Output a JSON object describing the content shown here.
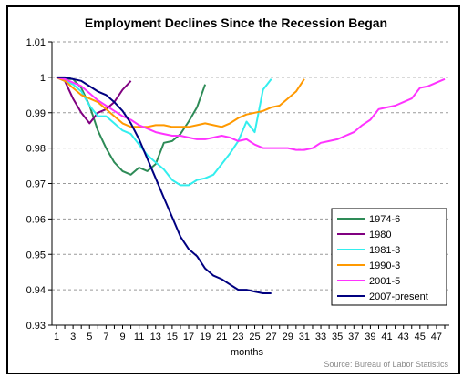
{
  "chart_data": {
    "type": "line",
    "title": "Employment Declines Since the Recession Began",
    "xlabel": "months",
    "ylabel": "",
    "source": "Source: Bureau of Labor Statistics",
    "xlim": [
      1,
      48
    ],
    "ylim": [
      0.93,
      1.01
    ],
    "yticks": [
      "0.93",
      "0.94",
      "0.95",
      "0.96",
      "0.97",
      "0.98",
      "0.99",
      "1",
      "1.01"
    ],
    "ytick_values": [
      0.93,
      0.94,
      0.95,
      0.96,
      0.97,
      0.98,
      0.99,
      1.0,
      1.01
    ],
    "xticks": [
      "1",
      "3",
      "5",
      "7",
      "9",
      "11",
      "13",
      "15",
      "17",
      "19",
      "21",
      "23",
      "25",
      "27",
      "29",
      "31",
      "33",
      "35",
      "37",
      "39",
      "41",
      "43",
      "45",
      "47"
    ],
    "grid": "horizontal dashed",
    "legend_position": "right",
    "series": [
      {
        "name": "1974-6",
        "color": "#2E8B57",
        "values": [
          1.0,
          0.9995,
          0.9995,
          0.997,
          0.992,
          0.985,
          0.98,
          0.976,
          0.9735,
          0.9725,
          0.9745,
          0.9735,
          0.9755,
          0.9815,
          0.982,
          0.984,
          0.9875,
          0.9915,
          0.998
        ]
      },
      {
        "name": "1980",
        "color": "#800080",
        "values": [
          1.0,
          0.999,
          0.994,
          0.99,
          0.987,
          0.99,
          0.991,
          0.993,
          0.9965,
          0.999
        ]
      },
      {
        "name": "1981-3",
        "color": "#33EEEE",
        "values": [
          1.0,
          0.999,
          0.998,
          0.996,
          0.992,
          0.989,
          0.989,
          0.987,
          0.985,
          0.984,
          0.981,
          0.978,
          0.976,
          0.974,
          0.971,
          0.9695,
          0.9695,
          0.971,
          0.9715,
          0.9725,
          0.9755,
          0.9785,
          0.982,
          0.9875,
          0.9845,
          0.9965,
          0.9995
        ]
      },
      {
        "name": "1990-3",
        "color": "#FF9900",
        "values": [
          1.0,
          0.999,
          0.997,
          0.995,
          0.994,
          0.993,
          0.991,
          0.989,
          0.987,
          0.986,
          0.986,
          0.986,
          0.9865,
          0.9865,
          0.986,
          0.986,
          0.986,
          0.9865,
          0.987,
          0.9865,
          0.986,
          0.987,
          0.9885,
          0.9895,
          0.99,
          0.9905,
          0.9915,
          0.992,
          0.994,
          0.996,
          0.9995
        ]
      },
      {
        "name": "2001-5",
        "color": "#FF33FF",
        "values": [
          1.0,
          0.9995,
          0.9985,
          0.9975,
          0.9955,
          0.9935,
          0.992,
          0.9905,
          0.989,
          0.988,
          0.9865,
          0.9855,
          0.9845,
          0.984,
          0.9835,
          0.9835,
          0.983,
          0.9825,
          0.9825,
          0.983,
          0.9835,
          0.983,
          0.982,
          0.9825,
          0.981,
          0.98,
          0.98,
          0.98,
          0.98,
          0.9795,
          0.9795,
          0.98,
          0.9815,
          0.982,
          0.9825,
          0.9835,
          0.9845,
          0.9865,
          0.988,
          0.991,
          0.9915,
          0.992,
          0.993,
          0.994,
          0.997,
          0.9975,
          0.9985,
          0.9995
        ]
      },
      {
        "name": "2007-present",
        "color": "#000080",
        "values": [
          1.0,
          1.0,
          0.9995,
          0.999,
          0.9975,
          0.996,
          0.995,
          0.993,
          0.9905,
          0.987,
          0.9825,
          0.977,
          0.9715,
          0.966,
          0.9605,
          0.955,
          0.9515,
          0.9495,
          0.946,
          0.944,
          0.943,
          0.9415,
          0.94,
          0.94,
          0.9395,
          0.939,
          0.939
        ]
      }
    ]
  }
}
